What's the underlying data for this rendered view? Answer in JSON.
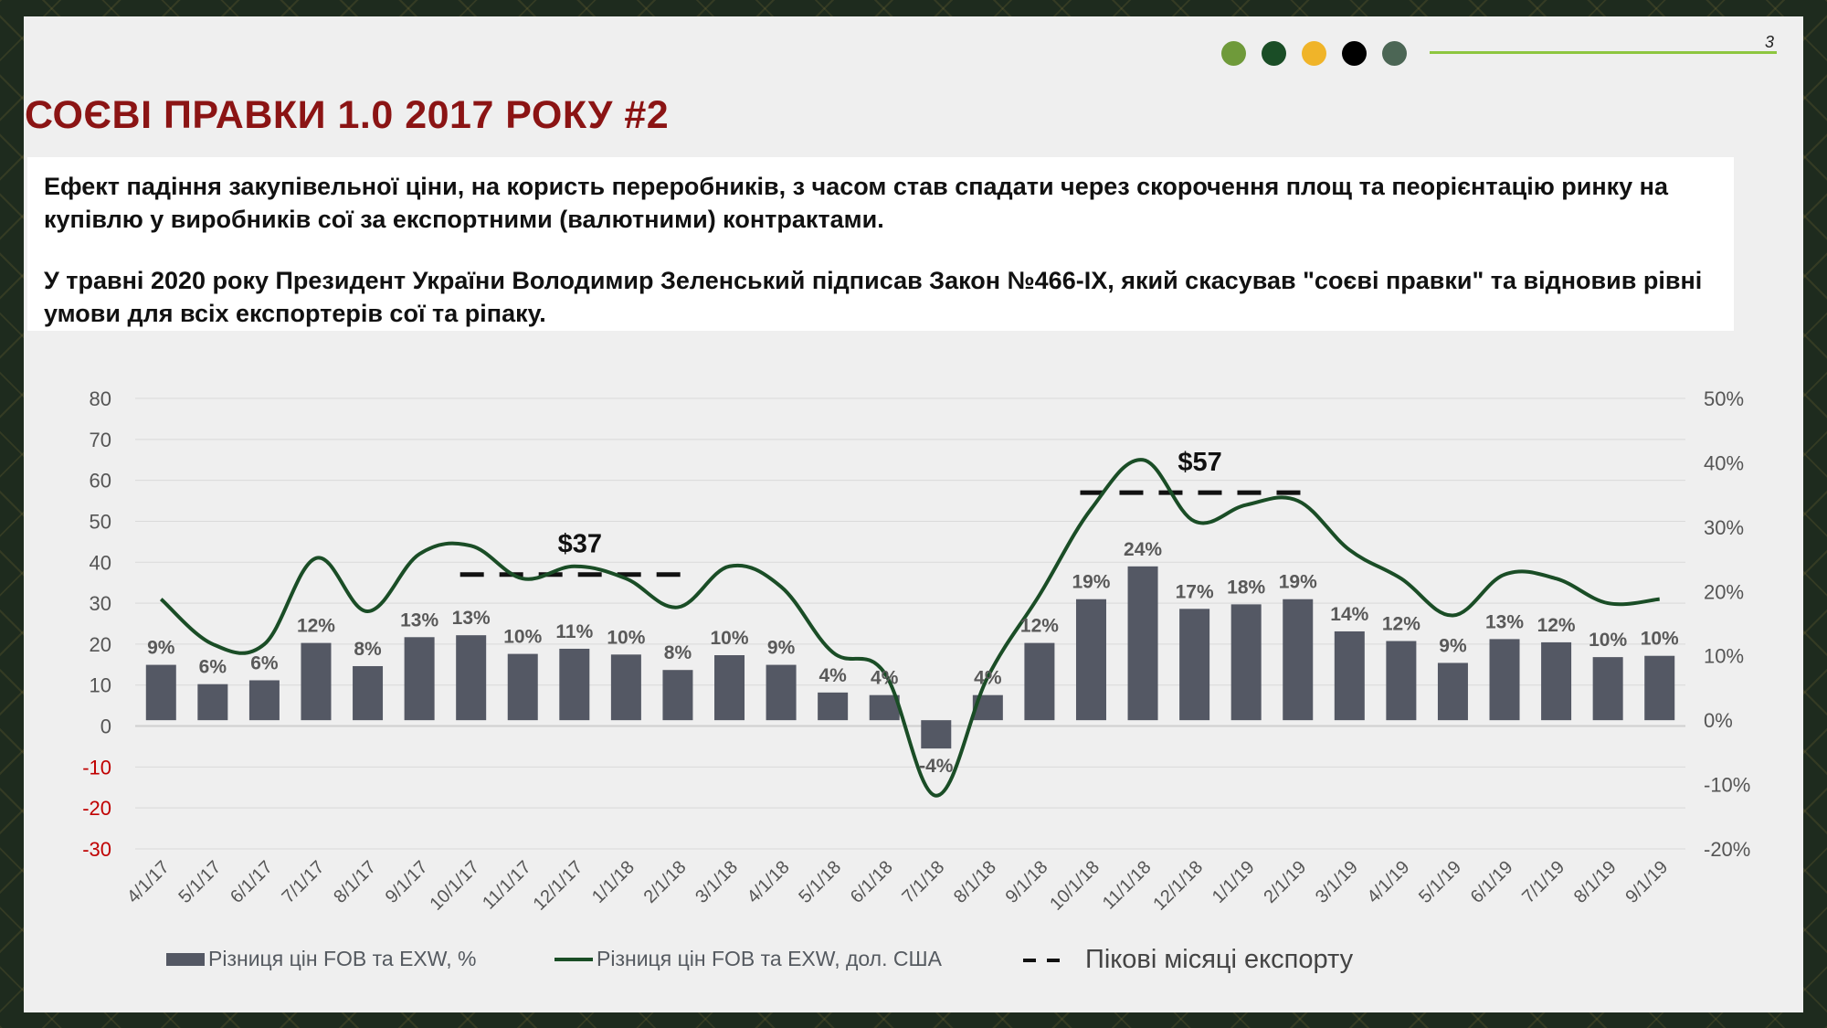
{
  "page": {
    "number": "3",
    "title": "СОЄВІ ПРАВКИ 1.0 2017 РОКУ #2",
    "paragraphs": [
      "Ефект падіння закупівельної ціни, на користь переробників, з часом став спадати через скорочення площ та пеорієнтацію ринку на купівлю у виробників сої за експортними (валютними) контрактами.",
      "У травні 2020 року Президент України Володимир Зеленський підписав Закон №466-IX, який скасував \"соєві правки\" та відновив рівні умови для всіх експортерів сої та ріпаку."
    ],
    "header_dots": [
      "#6f9a3a",
      "#1a4d26",
      "#f0b429",
      "#000000",
      "#4c6655"
    ]
  },
  "chart_data": {
    "type": "bar",
    "categories": [
      "4/1/17",
      "5/1/17",
      "6/1/17",
      "7/1/17",
      "8/1/17",
      "9/1/17",
      "10/1/17",
      "11/1/17",
      "12/1/17",
      "1/1/18",
      "2/1/18",
      "3/1/18",
      "4/1/18",
      "5/1/18",
      "6/1/18",
      "7/1/18",
      "8/1/18",
      "9/1/18",
      "10/1/18",
      "11/1/18",
      "12/1/18",
      "1/1/19",
      "2/1/19",
      "3/1/19",
      "4/1/19",
      "5/1/19",
      "6/1/19",
      "7/1/19",
      "8/1/19",
      "9/1/19"
    ],
    "series": [
      {
        "name": "Різниця цін FOB та EXW, %",
        "type": "bar",
        "axis": "right",
        "color": "#545864",
        "values": [
          8.6,
          5.6,
          6.2,
          12.0,
          8.4,
          12.9,
          13.2,
          10.3,
          11.1,
          10.2,
          7.8,
          10.1,
          8.6,
          4.3,
          3.9,
          -4.4,
          3.9,
          12.0,
          18.8,
          23.9,
          17.3,
          18.0,
          18.8,
          13.8,
          12.3,
          8.9,
          12.6,
          12.1,
          9.8,
          10.0
        ],
        "labels": [
          "9%",
          "6%",
          "6%",
          "12%",
          "8%",
          "13%",
          "13%",
          "10%",
          "11%",
          "10%",
          "8%",
          "10%",
          "9%",
          "4%",
          "4%",
          "-4%",
          "4%",
          "12%",
          "19%",
          "24%",
          "17%",
          "18%",
          "19%",
          "14%",
          "12%",
          "9%",
          "13%",
          "12%",
          "10%",
          "10%"
        ]
      },
      {
        "name": "Різниця цін FOB та EXW, дол. США",
        "type": "line",
        "axis": "left",
        "color": "#1a4d26",
        "values": [
          31,
          20,
          20,
          41,
          28,
          42,
          44,
          36,
          39,
          36,
          29,
          39,
          34,
          18,
          13,
          -17,
          12,
          32,
          53,
          65,
          50,
          54,
          55,
          43,
          36,
          27,
          37,
          36,
          30,
          31
        ]
      }
    ],
    "peak_months": {
      "name": "Пікові місяці експорту",
      "segments": [
        {
          "from": "10/1/17",
          "to": "2/1/18",
          "y": 37,
          "label": "$37"
        },
        {
          "from": "10/1/18",
          "to": "2/1/19",
          "y": 57,
          "label": "$57"
        }
      ]
    },
    "left_axis": {
      "ticks": [
        "80",
        "70",
        "60",
        "50",
        "40",
        "30",
        "20",
        "10",
        "0",
        "-10",
        "-20",
        "-30"
      ],
      "min": -30,
      "max": 80,
      "negative_color": "#c00000"
    },
    "right_axis": {
      "ticks": [
        "50%",
        "40%",
        "30%",
        "20%",
        "10%",
        "0%",
        "-10%",
        "-20%"
      ],
      "min": -20,
      "max": 50
    },
    "grid": true,
    "legend": "bottom"
  }
}
